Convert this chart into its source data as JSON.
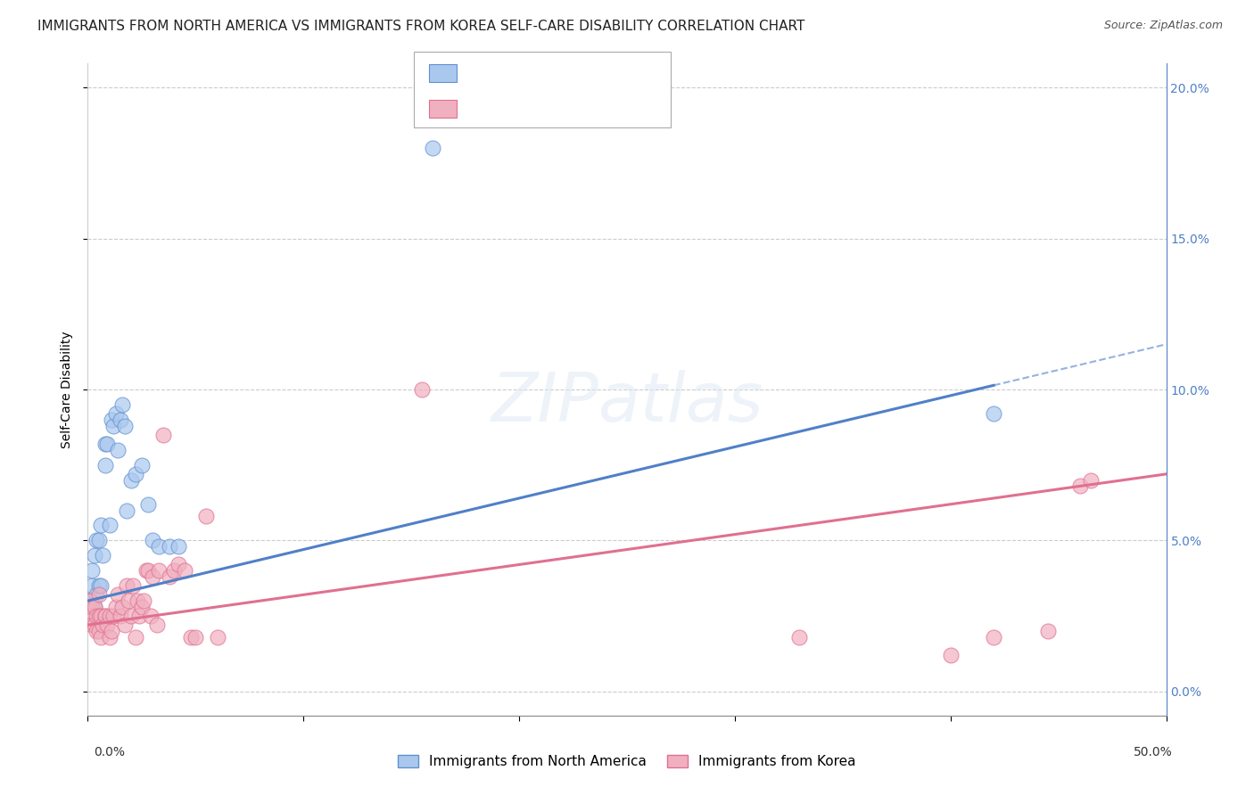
{
  "title": "IMMIGRANTS FROM NORTH AMERICA VS IMMIGRANTS FROM KOREA SELF-CARE DISABILITY CORRELATION CHART",
  "source": "Source: ZipAtlas.com",
  "ylabel": "Self-Care Disability",
  "watermark": "ZIPatlas",
  "series1_label": "Immigrants from North America",
  "series1_color": "#aac8ee",
  "series1_edge_color": "#6090d0",
  "series1_line_color": "#5080c8",
  "series2_label": "Immigrants from Korea",
  "series2_color": "#f0b0c0",
  "series2_edge_color": "#e07090",
  "series2_line_color": "#e07090",
  "xmin": 0.0,
  "xmax": 0.5,
  "ymin": -0.008,
  "ymax": 0.208,
  "yticks": [
    0.0,
    0.05,
    0.1,
    0.15,
    0.2
  ],
  "yticklabels": [
    "0.0%",
    "5.0%",
    "10.0%",
    "15.0%",
    "20.0%"
  ],
  "background_color": "#ffffff",
  "grid_color": "#cccccc",
  "title_fontsize": 11,
  "source_fontsize": 9,
  "axis_label_fontsize": 10,
  "tick_fontsize": 10,
  "legend_fontsize": 11,
  "series1_x": [
    0.001,
    0.002,
    0.002,
    0.003,
    0.003,
    0.004,
    0.004,
    0.005,
    0.005,
    0.006,
    0.006,
    0.007,
    0.008,
    0.008,
    0.009,
    0.01,
    0.011,
    0.012,
    0.013,
    0.014,
    0.015,
    0.016,
    0.017,
    0.018,
    0.02,
    0.022,
    0.025,
    0.028,
    0.03,
    0.033,
    0.038,
    0.042,
    0.16,
    0.42
  ],
  "series1_y": [
    0.03,
    0.035,
    0.04,
    0.028,
    0.045,
    0.032,
    0.05,
    0.035,
    0.05,
    0.035,
    0.055,
    0.045,
    0.075,
    0.082,
    0.082,
    0.055,
    0.09,
    0.088,
    0.092,
    0.08,
    0.09,
    0.095,
    0.088,
    0.06,
    0.07,
    0.072,
    0.075,
    0.062,
    0.05,
    0.048,
    0.048,
    0.048,
    0.18,
    0.092
  ],
  "series2_x": [
    0.001,
    0.001,
    0.002,
    0.002,
    0.003,
    0.003,
    0.004,
    0.004,
    0.005,
    0.005,
    0.005,
    0.006,
    0.006,
    0.007,
    0.008,
    0.008,
    0.009,
    0.01,
    0.01,
    0.011,
    0.012,
    0.013,
    0.014,
    0.015,
    0.016,
    0.017,
    0.018,
    0.019,
    0.02,
    0.021,
    0.022,
    0.023,
    0.024,
    0.025,
    0.026,
    0.027,
    0.028,
    0.029,
    0.03,
    0.032,
    0.033,
    0.035,
    0.038,
    0.04,
    0.042,
    0.045,
    0.048,
    0.05,
    0.055,
    0.06,
    0.155,
    0.33,
    0.4,
    0.42,
    0.445,
    0.46,
    0.465
  ],
  "series2_y": [
    0.025,
    0.03,
    0.022,
    0.028,
    0.022,
    0.028,
    0.025,
    0.02,
    0.02,
    0.025,
    0.032,
    0.018,
    0.025,
    0.022,
    0.025,
    0.025,
    0.022,
    0.025,
    0.018,
    0.02,
    0.025,
    0.028,
    0.032,
    0.025,
    0.028,
    0.022,
    0.035,
    0.03,
    0.025,
    0.035,
    0.018,
    0.03,
    0.025,
    0.028,
    0.03,
    0.04,
    0.04,
    0.025,
    0.038,
    0.022,
    0.04,
    0.085,
    0.038,
    0.04,
    0.042,
    0.04,
    0.018,
    0.018,
    0.058,
    0.018,
    0.1,
    0.018,
    0.012,
    0.018,
    0.02,
    0.068,
    0.07
  ],
  "series1_trend_x0": 0.0,
  "series1_trend_y0": 0.03,
  "series1_trend_x1": 0.5,
  "series1_trend_y1": 0.115,
  "series2_trend_x0": 0.0,
  "series2_trend_y0": 0.022,
  "series2_trend_x1": 0.5,
  "series2_trend_y1": 0.072
}
